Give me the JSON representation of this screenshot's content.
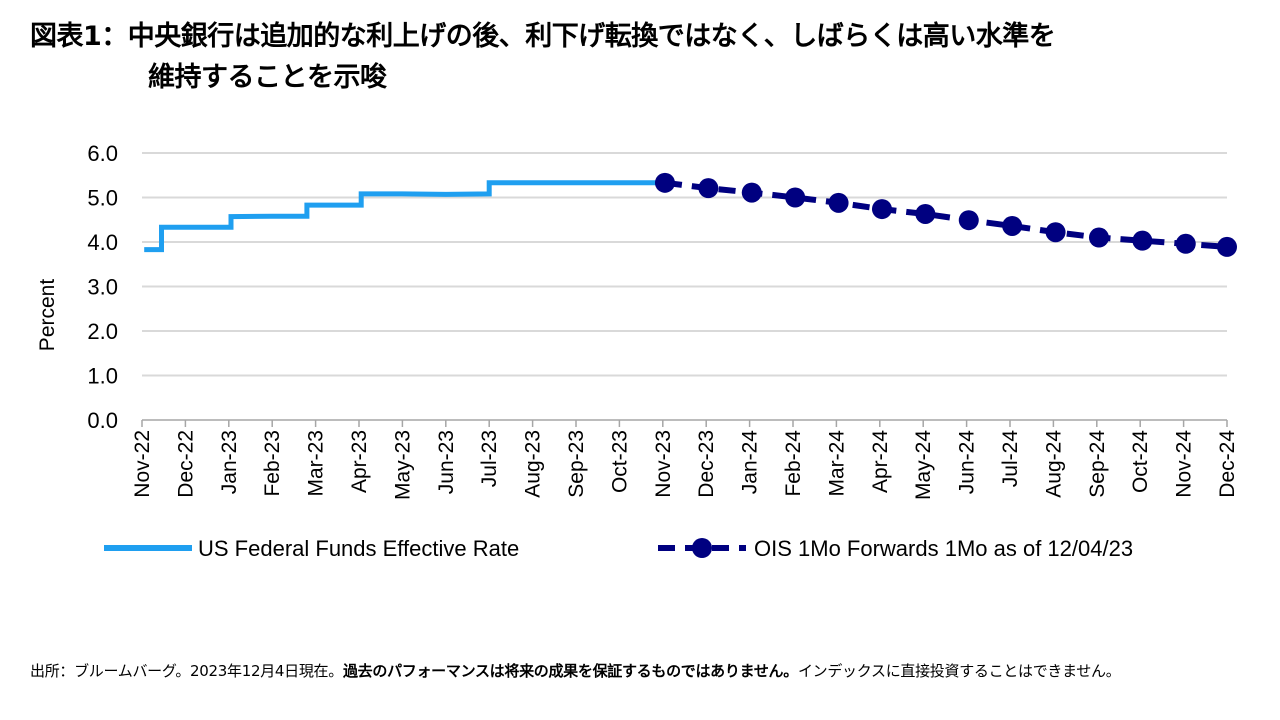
{
  "header": {
    "title_line1": "図表1：中央銀行は追加的な利上げの後、利下げ転換ではなく、しばらくは高い水準を",
    "title_line2": "維持することを示唆"
  },
  "footer": {
    "note_prefix": "出所：ブルームバーグ。2023年12月4日現在。",
    "note_bold": "過去のパフォーマンスは将来の成果を保証するものではありません。",
    "note_suffix": "インデックスに直接投資することはできません。"
  },
  "colors": {
    "effr": "#1f9ff0",
    "ois": "#000080",
    "grid": "#d9d9d9",
    "axis": "#a6a6a6"
  },
  "chart_data": {
    "type": "line",
    "title": "図表1：中央銀行は追加的な利上げの後、利下げ転換ではなく、しばらくは高い水準を維持することを示唆",
    "xlabel": "",
    "ylabel": "Percent",
    "ylim": [
      0,
      6
    ],
    "xlim": [
      0,
      25
    ],
    "y_ticks": [
      "0.0",
      "1.0",
      "2.0",
      "3.0",
      "4.0",
      "5.0",
      "6.0"
    ],
    "categories": [
      "Nov-22",
      "Dec-22",
      "Jan-23",
      "Feb-23",
      "Mar-23",
      "Apr-23",
      "May-23",
      "Jun-23",
      "Jul-23",
      "Aug-23",
      "Sep-23",
      "Oct-23",
      "Nov-23",
      "Dec-23",
      "Jan-24",
      "Feb-24",
      "Mar-24",
      "Apr-24",
      "May-24",
      "Jun-24",
      "Jul-24",
      "Aug-24",
      "Sep-24",
      "Oct-24",
      "Nov-24",
      "Dec-24"
    ],
    "grid": true,
    "legend": "bottom",
    "series": [
      {
        "name": "US Federal Funds Effective Rate",
        "style": "solid-step",
        "x": [
          0.05,
          0.45,
          0.45,
          2.05,
          2.05,
          3.0,
          3.8,
          3.8,
          5.05,
          5.05,
          6.0,
          7.0,
          8.0,
          8.0,
          12.0
        ],
        "values": [
          3.83,
          3.83,
          4.33,
          4.33,
          4.57,
          4.58,
          4.58,
          4.83,
          4.83,
          5.08,
          5.08,
          5.07,
          5.08,
          5.33,
          5.33
        ]
      },
      {
        "name": "OIS 1Mo Forwards 1Mo as of 12/04/23",
        "style": "dashed-markers",
        "x": [
          12.05,
          13.05,
          14.05,
          15.05,
          16.05,
          17.05,
          18.05,
          19.05,
          20.05,
          21.05,
          22.05,
          23.05,
          24.05,
          25.0
        ],
        "values": [
          5.33,
          5.21,
          5.11,
          5.0,
          4.88,
          4.74,
          4.63,
          4.49,
          4.36,
          4.22,
          4.1,
          4.03,
          3.96,
          3.89
        ]
      }
    ]
  }
}
